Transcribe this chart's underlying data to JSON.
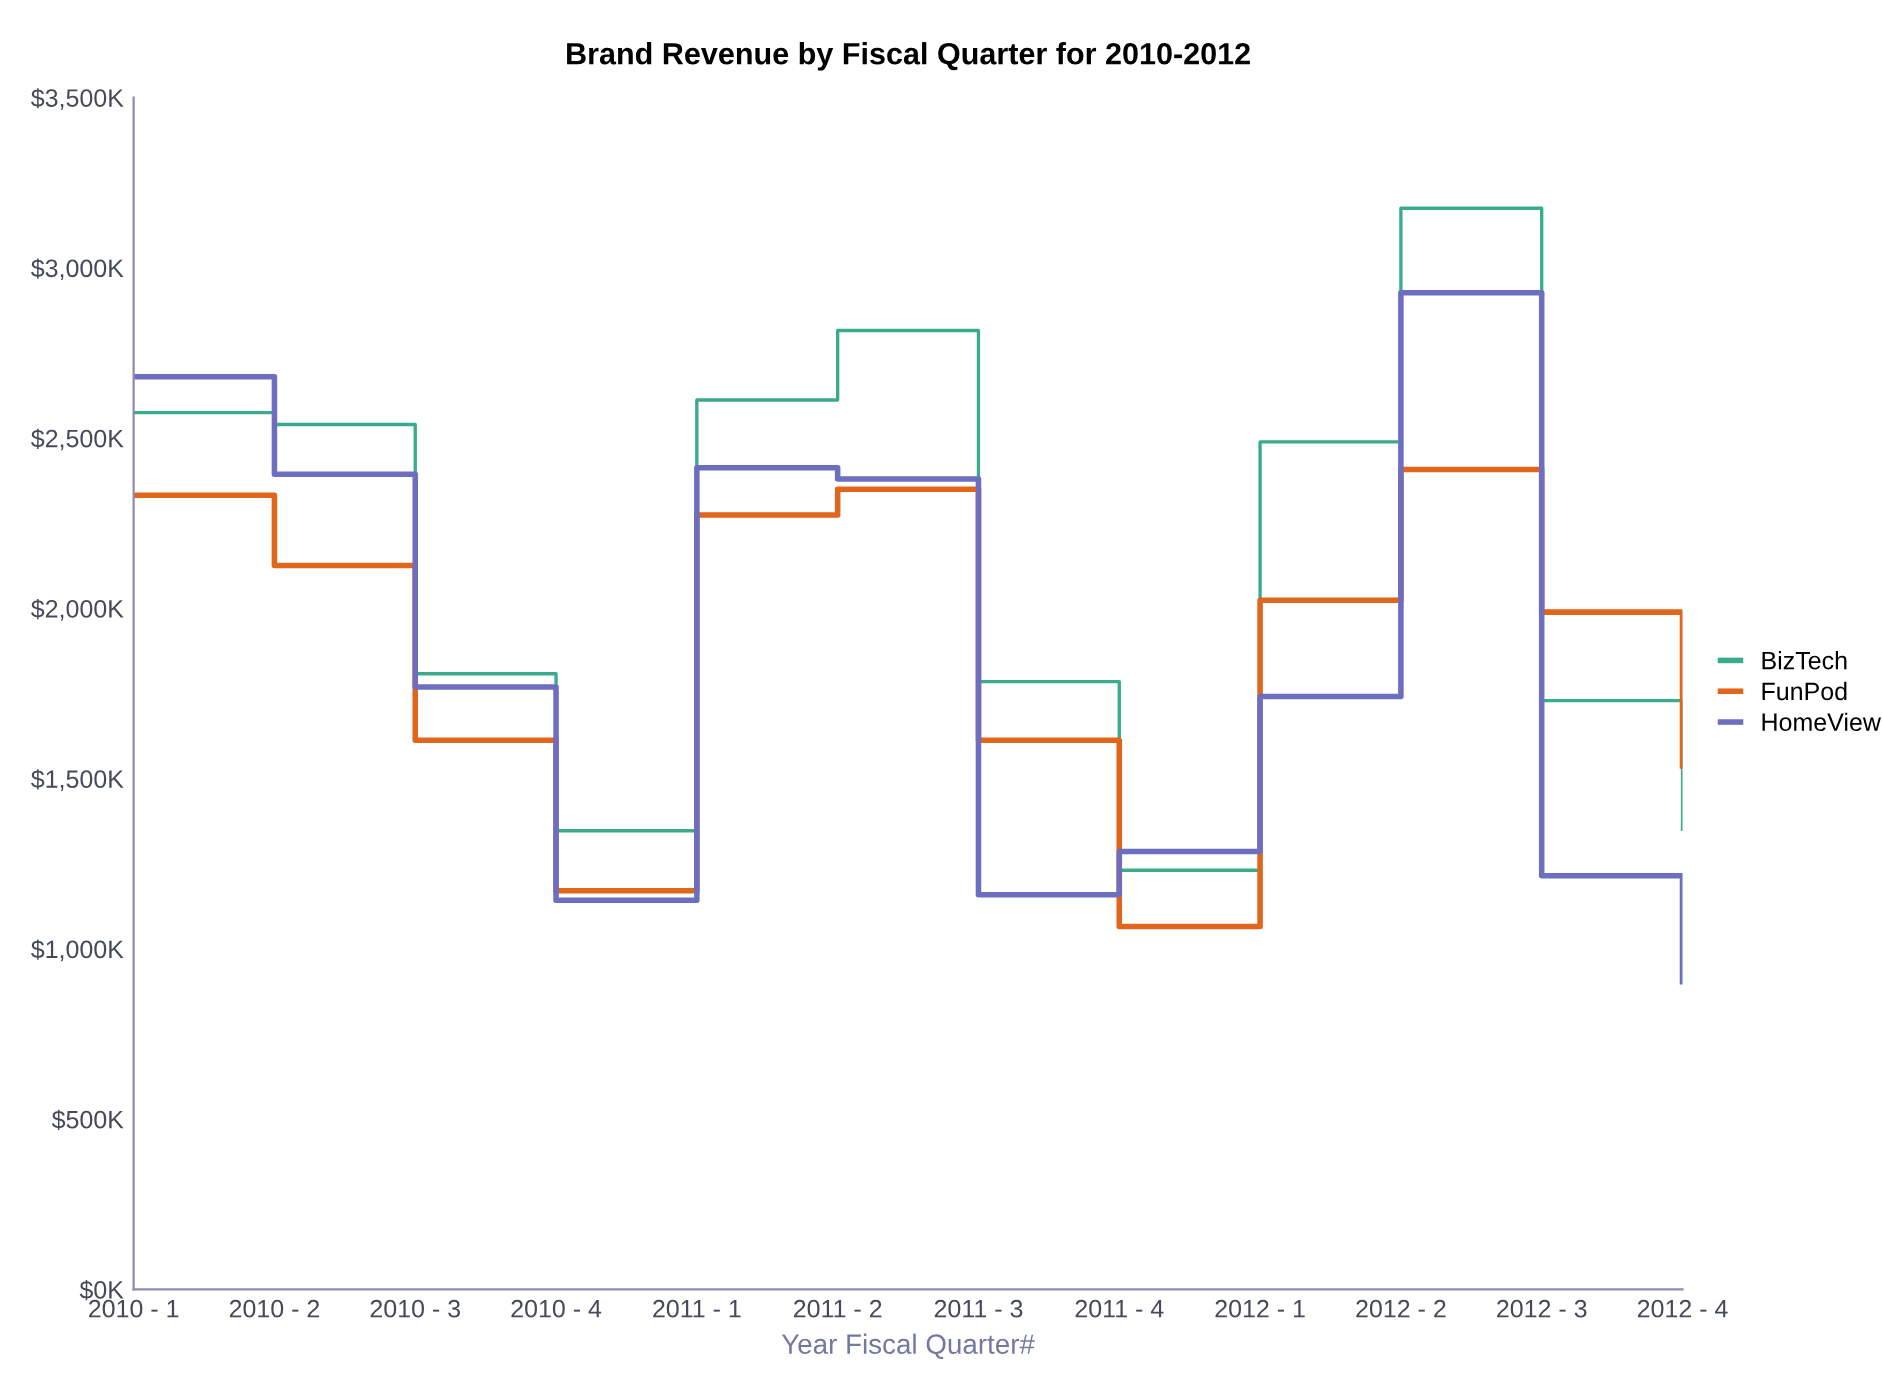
{
  "chart_data": {
    "type": "step",
    "title": "Brand Revenue by Fiscal Quarter for 2010-2012",
    "xlabel": "Year Fiscal Quarter#",
    "categories": [
      "2010 - 1",
      "2010 - 2",
      "2010 - 3",
      "2010 - 4",
      "2011 - 1",
      "2011 - 2",
      "2011 - 3",
      "2011 - 4",
      "2012 - 1",
      "2012 - 2",
      "2012 - 3",
      "2012 - 4"
    ],
    "series": [
      {
        "name": "BizTech",
        "color": "#3aab8c",
        "values": [
          2575,
          2540,
          1808,
          1347,
          2612,
          2816,
          1785,
          1231,
          2489,
          3175,
          1729,
          1351
        ]
      },
      {
        "name": "FunPod",
        "color": "#e0661c",
        "values": [
          2332,
          2126,
          1613,
          1171,
          2274,
          2350,
          1613,
          1066,
          2024,
          2408,
          1989,
          1537
        ]
      },
      {
        "name": "HomeView",
        "color": "#6e6ec0",
        "values": [
          2680,
          2394,
          1769,
          1143,
          2413,
          2380,
          1159,
          1286,
          1741,
          2927,
          1215,
          904
        ]
      }
    ],
    "ylim": [
      0,
      3500
    ],
    "yticks": [
      {
        "value": 0,
        "label": "$0K"
      },
      {
        "value": 500,
        "label": "$500K"
      },
      {
        "value": 1000,
        "label": "$1,000K"
      },
      {
        "value": 1500,
        "label": "$1,500K"
      },
      {
        "value": 2000,
        "label": "$2,000K"
      },
      {
        "value": 2500,
        "label": "$2,500K"
      },
      {
        "value": 3000,
        "label": "$3,000K"
      },
      {
        "value": 3500,
        "label": "$3,500K"
      }
    ],
    "grid": false,
    "legend": "right"
  }
}
